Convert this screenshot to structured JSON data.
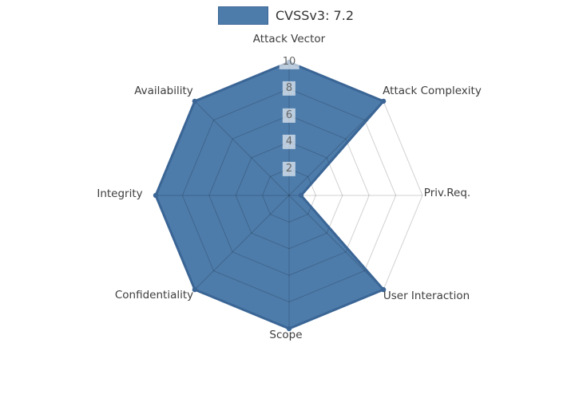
{
  "legend": {
    "label": "CVSSv3: 7.2",
    "swatch_fill": "#4d7cab",
    "swatch_border": "#3a6595"
  },
  "chart_data": {
    "type": "radar",
    "title": "CVSSv3: 7.2",
    "categories": [
      "Attack Vector",
      "Attack Complexity",
      "Priv.Req.",
      "User Interaction",
      "Scope",
      "Confidentiality",
      "Integrity",
      "Availability"
    ],
    "series": [
      {
        "name": "CVSSv3: 7.2",
        "values": [
          10,
          10,
          0.9,
          10,
          10,
          10,
          10,
          10
        ]
      }
    ],
    "ticks": [
      2,
      4,
      6,
      8,
      10
    ],
    "range": [
      0,
      10
    ],
    "grid": true,
    "legend_position": "top-center",
    "colors": {
      "fill": "#4d7cab",
      "edge": "#3a6595",
      "grid_line": "rgba(0,0,0,0.18)",
      "tick_text": "#666666",
      "tick_bg": "rgba(255,255,255,0.62)",
      "label_text": "#3d3d3d",
      "background": "#ffffff"
    }
  }
}
